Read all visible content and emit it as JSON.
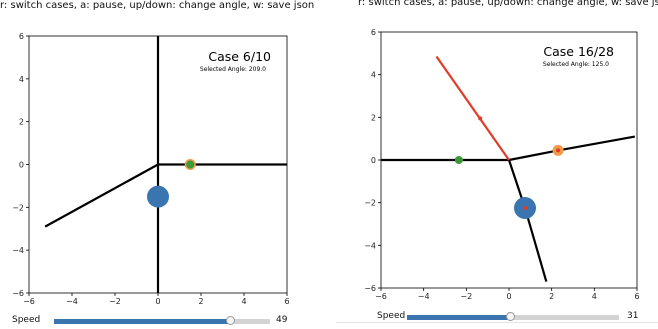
{
  "help_text": "r: switch cases, a: pause, up/down: change angle, w: save json",
  "speed_label": "Speed",
  "colors": {
    "line": "#000000",
    "selected_line": "#e03c28",
    "big_marker": "#3a75b0",
    "orange_marker": "#f2994a",
    "green_marker": "#3a9a3a",
    "slider_fill": "#3a75b0",
    "slider_track": "#d3d3d3"
  },
  "panels": [
    {
      "case_title": "Case 6/10",
      "selected_angle": "Selected Angle: 209.0",
      "speed_value": "49",
      "speed_fraction": 0.82,
      "x_ticks": [
        "−6",
        "−4",
        "−2",
        "0",
        "2",
        "4",
        "6"
      ],
      "y_ticks": [
        "6",
        "4",
        "2",
        "0",
        "−2",
        "−4",
        "−6"
      ],
      "chart_data": {
        "type": "scatter",
        "xlim": [
          -6,
          6
        ],
        "ylim": [
          -6,
          6
        ],
        "segments": [
          {
            "x": [
              0,
              0
            ],
            "y": [
              0,
              6
            ]
          },
          {
            "x": [
              0,
              0
            ],
            "y": [
              0,
              -6
            ]
          },
          {
            "x": [
              0,
              6
            ],
            "y": [
              0,
              0
            ]
          },
          {
            "x": [
              0,
              -5.25
            ],
            "y": [
              0,
              -2.9
            ]
          }
        ],
        "selected_segment": null,
        "markers": [
          {
            "x": 0,
            "y": -1.5,
            "kind": "big"
          },
          {
            "x": 1.5,
            "y": 0,
            "kind": "orange"
          },
          {
            "x": 1.5,
            "y": 0,
            "kind": "green"
          }
        ]
      }
    },
    {
      "case_title": "Case 16/28",
      "selected_angle": "Selected Angle: 125.0",
      "speed_value": "31",
      "speed_fraction": 0.49,
      "x_ticks": [
        "−6",
        "−4",
        "−2",
        "0",
        "2",
        "4",
        "6"
      ],
      "y_ticks": [
        "6",
        "4",
        "2",
        "0",
        "−2",
        "−4",
        "−6"
      ],
      "chart_data": {
        "type": "scatter",
        "xlim": [
          -6,
          6
        ],
        "ylim": [
          -6,
          6
        ],
        "segments": [
          {
            "x": [
              0,
              -6
            ],
            "y": [
              0,
              0
            ]
          },
          {
            "x": [
              0,
              2.3
            ],
            "y": [
              0,
              0.45
            ]
          },
          {
            "x": [
              2.3,
              5.9
            ],
            "y": [
              0.45,
              1.1
            ]
          },
          {
            "x": [
              0,
              0.75
            ],
            "y": [
              0,
              -2.25
            ]
          },
          {
            "x": [
              0.75,
              1.75
            ],
            "y": [
              -2.25,
              -5.7
            ]
          }
        ],
        "selected_segment": {
          "x": [
            0,
            -3.4
          ],
          "y": [
            0,
            4.85
          ]
        },
        "markers": [
          {
            "x": -1.35,
            "y": 1.95,
            "kind": "small_red"
          },
          {
            "x": -2.35,
            "y": 0,
            "kind": "green"
          },
          {
            "x": 2.3,
            "y": 0.45,
            "kind": "orange"
          },
          {
            "x": 2.3,
            "y": 0.45,
            "kind": "small_red"
          },
          {
            "x": 0.75,
            "y": -2.25,
            "kind": "big"
          },
          {
            "x": 0.75,
            "y": -2.25,
            "kind": "small_red"
          }
        ]
      }
    }
  ]
}
